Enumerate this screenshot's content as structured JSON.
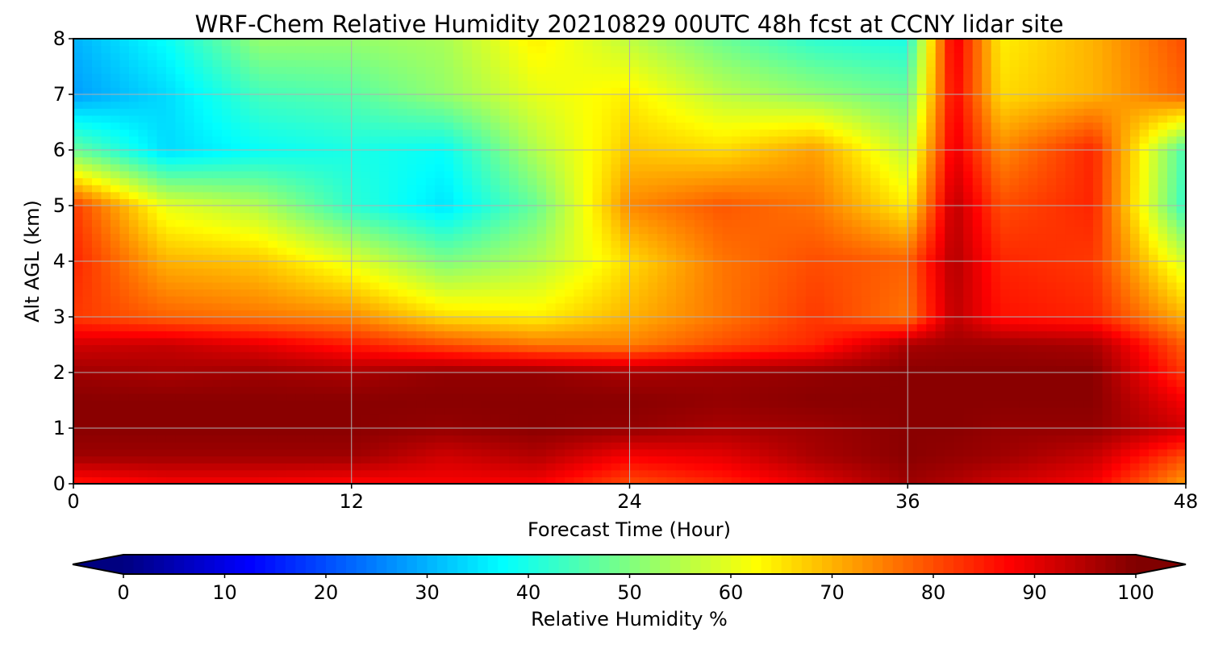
{
  "chart_data": {
    "type": "heatmap",
    "title": "WRF-Chem Relative Humidity 20210829 00UTC 48h fcst at CCNY lidar site",
    "xlabel": "Forecast Time (Hour)",
    "ylabel": "Alt AGL (km)",
    "xlim": [
      0,
      48
    ],
    "ylim": [
      0,
      8
    ],
    "x_ticks": [
      0,
      12,
      24,
      36,
      48
    ],
    "y_ticks": [
      0,
      1,
      2,
      3,
      4,
      5,
      6,
      7,
      8
    ],
    "grid": true,
    "x": [
      0,
      4,
      8,
      12,
      16,
      20,
      24,
      28,
      32,
      36,
      38,
      40,
      44,
      48
    ],
    "y": [
      0,
      0.5,
      1,
      1.5,
      2,
      2.5,
      3,
      4,
      5,
      6,
      7,
      8
    ],
    "z": [
      [
        85,
        88,
        88,
        87,
        88,
        88,
        80,
        84,
        90,
        97,
        95,
        92,
        88,
        72
      ],
      [
        97,
        97,
        97,
        97,
        92,
        95,
        88,
        90,
        96,
        99,
        98,
        97,
        93,
        80
      ],
      [
        99,
        99,
        99,
        99,
        98,
        99,
        98,
        96,
        97,
        99,
        99,
        98,
        98,
        92
      ],
      [
        99,
        99,
        99,
        99,
        99,
        99,
        99,
        98,
        99,
        99,
        99,
        99,
        99,
        88
      ],
      [
        97,
        96,
        97,
        96,
        98,
        98,
        96,
        97,
        98,
        99,
        99,
        99,
        99,
        82
      ],
      [
        92,
        93,
        90,
        85,
        80,
        76,
        75,
        80,
        84,
        96,
        97,
        97,
        96,
        78
      ],
      [
        82,
        78,
        76,
        74,
        66,
        64,
        70,
        76,
        82,
        76,
        94,
        86,
        84,
        70
      ],
      [
        84,
        70,
        68,
        60,
        50,
        55,
        66,
        76,
        80,
        78,
        95,
        84,
        82,
        58
      ],
      [
        82,
        60,
        55,
        42,
        35,
        48,
        74,
        79,
        76,
        64,
        94,
        80,
        84,
        42
      ],
      [
        48,
        34,
        38,
        40,
        38,
        55,
        68,
        66,
        72,
        56,
        90,
        74,
        84,
        44
      ],
      [
        28,
        34,
        44,
        46,
        52,
        60,
        64,
        56,
        52,
        48,
        88,
        66,
        70,
        78
      ],
      [
        30,
        38,
        52,
        52,
        54,
        64,
        56,
        48,
        42,
        40,
        90,
        64,
        70,
        80
      ]
    ],
    "colorbar": {
      "label": "Relative Humidity %",
      "min": 0,
      "max": 100,
      "ticks": [
        0,
        10,
        20,
        30,
        40,
        50,
        60,
        70,
        80,
        90,
        100
      ],
      "extend": "both",
      "colormap": "jet"
    }
  }
}
